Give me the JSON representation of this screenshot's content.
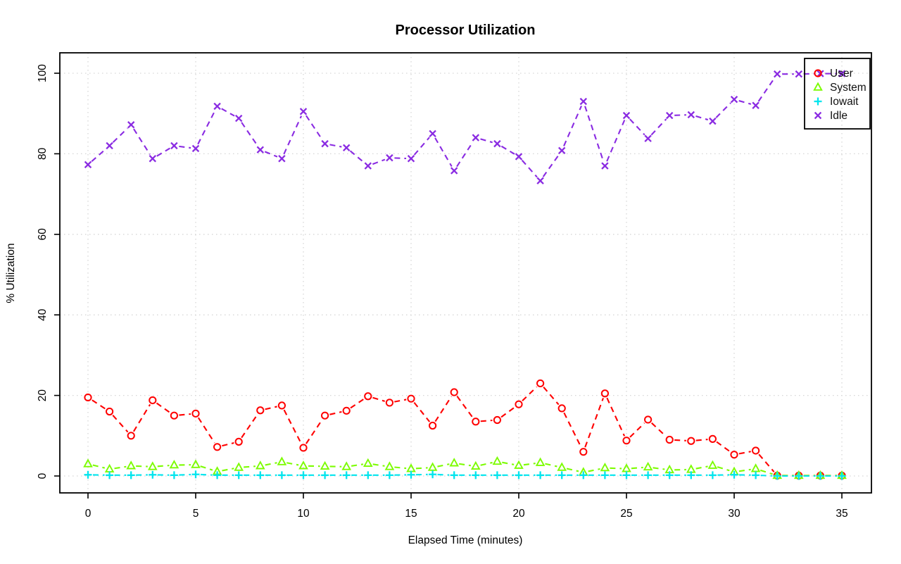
{
  "window": {
    "background": "#ffffff"
  },
  "chart_data": {
    "type": "line",
    "title": "Processor Utilization",
    "xlabel": "Elapsed Time (minutes)",
    "ylabel": "% Utilization",
    "x": [
      0,
      1,
      2,
      3,
      4,
      5,
      6,
      7,
      8,
      9,
      10,
      11,
      12,
      13,
      14,
      15,
      16,
      17,
      18,
      19,
      20,
      21,
      22,
      23,
      24,
      25,
      26,
      27,
      28,
      29,
      30,
      31,
      32,
      33,
      34,
      35
    ],
    "x_ticks": [
      0,
      5,
      10,
      15,
      20,
      25,
      30,
      35
    ],
    "y_ticks": [
      0,
      20,
      40,
      60,
      80,
      100
    ],
    "xlim": [
      0,
      35
    ],
    "ylim": [
      0,
      100
    ],
    "grid": true,
    "line_style": "dashed",
    "point_style": "open-markers",
    "legend_position": "top-right",
    "series": [
      {
        "name": "User",
        "color": "#ff0000",
        "marker": "circle",
        "values": [
          19.5,
          16.0,
          10.0,
          18.8,
          15.0,
          15.5,
          7.2,
          8.5,
          16.3,
          17.5,
          7.0,
          15.0,
          16.2,
          19.8,
          18.2,
          19.2,
          12.5,
          20.8,
          13.5,
          13.9,
          17.8,
          23.0,
          16.8,
          6.0,
          20.5,
          8.8,
          14.0,
          9.0,
          8.7,
          9.2,
          5.3,
          6.3,
          0.1,
          0.1,
          0.1,
          0.1
        ]
      },
      {
        "name": "System",
        "color": "#7cfc00",
        "marker": "triangle",
        "values": [
          3.0,
          1.7,
          2.5,
          2.3,
          2.7,
          2.8,
          1.1,
          2.1,
          2.5,
          3.5,
          2.5,
          2.4,
          2.3,
          3.1,
          2.3,
          1.8,
          2.1,
          3.2,
          2.4,
          3.6,
          2.6,
          3.3,
          2.1,
          0.9,
          2.0,
          1.8,
          2.2,
          1.5,
          1.6,
          2.6,
          1.0,
          1.8,
          0.1,
          0.1,
          0.1,
          0.1
        ]
      },
      {
        "name": "Iowait",
        "color": "#00e5ee",
        "marker": "plus",
        "values": [
          0.3,
          0.2,
          0.2,
          0.3,
          0.2,
          0.4,
          0.2,
          0.2,
          0.2,
          0.2,
          0.2,
          0.2,
          0.2,
          0.2,
          0.2,
          0.3,
          0.4,
          0.2,
          0.2,
          0.2,
          0.2,
          0.2,
          0.2,
          0.2,
          0.2,
          0.2,
          0.2,
          0.2,
          0.2,
          0.2,
          0.3,
          0.2,
          0.0,
          0.0,
          0.0,
          0.0
        ]
      },
      {
        "name": "Idle",
        "color": "#8a2be2",
        "marker": "x",
        "values": [
          77.3,
          82.0,
          87.2,
          78.8,
          82.0,
          81.3,
          91.8,
          88.8,
          81.0,
          78.8,
          90.5,
          82.5,
          81.5,
          77.0,
          79.0,
          78.8,
          85.0,
          75.8,
          84.0,
          82.5,
          79.3,
          73.3,
          80.8,
          93.0,
          77.0,
          89.5,
          83.8,
          89.5,
          89.7,
          88.1,
          93.5,
          92.0,
          99.8,
          99.8,
          99.9,
          99.9
        ]
      }
    ]
  }
}
